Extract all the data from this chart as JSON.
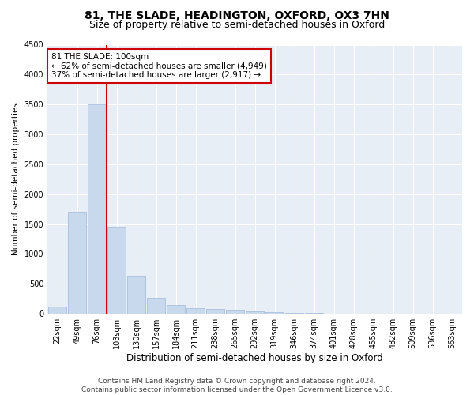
{
  "title": "81, THE SLADE, HEADINGTON, OXFORD, OX3 7HN",
  "subtitle": "Size of property relative to semi-detached houses in Oxford",
  "xlabel": "Distribution of semi-detached houses by size in Oxford",
  "ylabel": "Number of semi-detached properties",
  "categories": [
    "22sqm",
    "49sqm",
    "76sqm",
    "103sqm",
    "130sqm",
    "157sqm",
    "184sqm",
    "211sqm",
    "238sqm",
    "265sqm",
    "292sqm",
    "319sqm",
    "346sqm",
    "374sqm",
    "401sqm",
    "428sqm",
    "455sqm",
    "482sqm",
    "509sqm",
    "536sqm",
    "563sqm"
  ],
  "values": [
    120,
    1700,
    3500,
    1450,
    620,
    270,
    150,
    100,
    80,
    60,
    45,
    30,
    20,
    10,
    5,
    4,
    3,
    3,
    2,
    2,
    2
  ],
  "bar_color": "#c9d9ed",
  "bar_edge_color": "#a0b8d8",
  "highlight_line_color": "#cc0000",
  "annotation_text": "81 THE SLADE: 100sqm\n← 62% of semi-detached houses are smaller (4,949)\n37% of semi-detached houses are larger (2,917) →",
  "annotation_box_color": "#ffffff",
  "annotation_box_edge_color": "#cc0000",
  "ylim": [
    0,
    4500
  ],
  "yticks": [
    0,
    500,
    1000,
    1500,
    2000,
    2500,
    3000,
    3500,
    4000,
    4500
  ],
  "background_color": "#e8eef5",
  "grid_color": "#ffffff",
  "footer_line1": "Contains HM Land Registry data © Crown copyright and database right 2024.",
  "footer_line2": "Contains public sector information licensed under the Open Government Licence v3.0.",
  "title_fontsize": 10,
  "subtitle_fontsize": 9,
  "xlabel_fontsize": 8.5,
  "ylabel_fontsize": 7.5,
  "tick_fontsize": 7,
  "footer_fontsize": 6.5,
  "annotation_fontsize": 7.5
}
